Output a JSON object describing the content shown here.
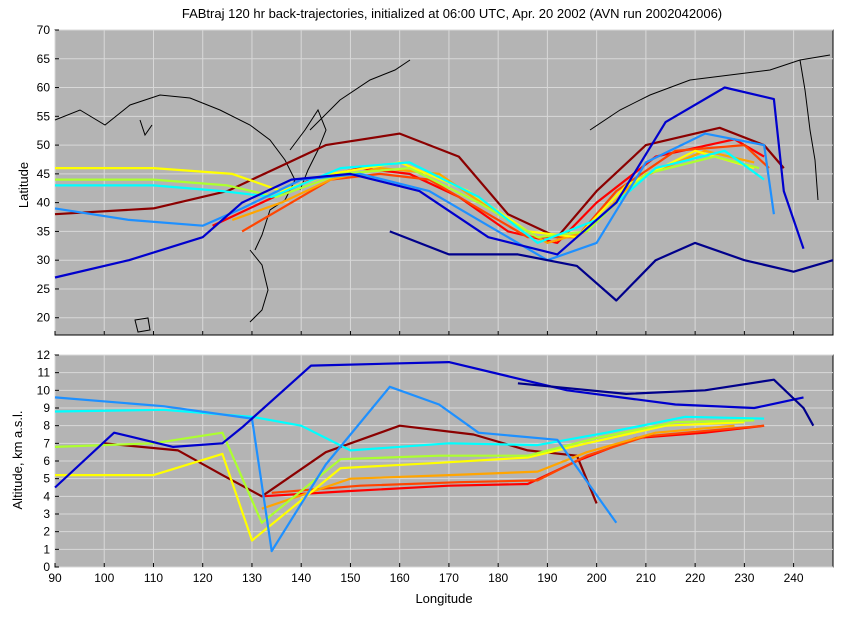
{
  "chart_data": [
    {
      "type": "line",
      "panel": "map",
      "title": "FABtraj 120 hr back-trajectories, initialized at 06:00 UTC, Apr. 20 2002 (AVN run 2002042006)",
      "xlabel": "",
      "ylabel": "Latitude",
      "xlim": [
        90,
        248
      ],
      "ylim": [
        17,
        70
      ],
      "xticks": [
        90,
        100,
        110,
        120,
        130,
        140,
        150,
        160,
        170,
        180,
        190,
        200,
        210,
        220,
        230,
        240
      ],
      "yticks": [
        20,
        25,
        30,
        35,
        40,
        45,
        50,
        55,
        60,
        65,
        70
      ],
      "grid": true,
      "background": "#b4b4b4",
      "series": [
        {
          "color": "#8b0000",
          "values": [
            [
              90,
              38
            ],
            [
              110,
              39
            ],
            [
              125,
              42
            ],
            [
              135,
              46
            ],
            [
              145,
              50
            ],
            [
              160,
              52
            ],
            [
              172,
              48
            ],
            [
              182,
              38
            ],
            [
              192,
              34
            ],
            [
              200,
              42
            ],
            [
              210,
              50
            ],
            [
              225,
              53
            ],
            [
              234,
              50
            ],
            [
              238,
              46
            ]
          ]
        },
        {
          "color": "#ff0000",
          "values": [
            [
              122,
              36
            ],
            [
              132,
              40
            ],
            [
              142,
              44
            ],
            [
              152,
              46
            ],
            [
              162,
              45
            ],
            [
              172,
              41
            ],
            [
              182,
              35
            ],
            [
              192,
              33
            ],
            [
              200,
              40
            ],
            [
              212,
              48
            ],
            [
              228,
              51
            ],
            [
              234,
              48
            ]
          ]
        },
        {
          "color": "#ff4500",
          "values": [
            [
              128,
              35
            ],
            [
              136,
              39
            ],
            [
              146,
              44
            ],
            [
              156,
              45
            ],
            [
              166,
              44
            ],
            [
              176,
              39
            ],
            [
              186,
              34
            ],
            [
              196,
              34
            ],
            [
              204,
              42
            ],
            [
              216,
              49
            ],
            [
              230,
              50
            ],
            [
              235,
              46
            ]
          ]
        },
        {
          "color": "#ffa500",
          "values": [
            [
              126,
              37
            ],
            [
              136,
              40
            ],
            [
              146,
              44
            ],
            [
              156,
              46
            ],
            [
              168,
              45
            ],
            [
              180,
              38
            ],
            [
              190,
              33
            ],
            [
              198,
              35
            ],
            [
              208,
              44
            ],
            [
              222,
              49
            ],
            [
              232,
              47
            ]
          ]
        },
        {
          "color": "#ffff00",
          "values": [
            [
              90,
              46
            ],
            [
              110,
              46
            ],
            [
              126,
              45
            ],
            [
              136,
              42
            ],
            [
              146,
              45
            ],
            [
              160,
              47
            ],
            [
              174,
              42
            ],
            [
              186,
              35
            ],
            [
              196,
              34
            ],
            [
              206,
              43
            ],
            [
              220,
              49
            ],
            [
              232,
              46
            ]
          ]
        },
        {
          "color": "#adff2f",
          "values": [
            [
              90,
              44
            ],
            [
              110,
              44
            ],
            [
              125,
              43
            ],
            [
              135,
              41
            ],
            [
              148,
              45
            ],
            [
              162,
              46
            ],
            [
              176,
              40
            ],
            [
              188,
              34
            ],
            [
              198,
              35
            ],
            [
              210,
              45
            ],
            [
              224,
              48
            ],
            [
              233,
              46
            ]
          ]
        },
        {
          "color": "#00ffff",
          "values": [
            [
              90,
              43
            ],
            [
              110,
              43
            ],
            [
              124,
              42
            ],
            [
              134,
              41
            ],
            [
              148,
              46
            ],
            [
              162,
              47
            ],
            [
              176,
              41
            ],
            [
              188,
              33
            ],
            [
              200,
              37
            ],
            [
              212,
              46
            ],
            [
              226,
              49
            ],
            [
              234,
              44
            ]
          ]
        },
        {
          "color": "#1e90ff",
          "values": [
            [
              90,
              39
            ],
            [
              105,
              37
            ],
            [
              120,
              36
            ],
            [
              128,
              39
            ],
            [
              140,
              44
            ],
            [
              152,
              45
            ],
            [
              166,
              42
            ],
            [
              178,
              36
            ],
            [
              190,
              30
            ],
            [
              200,
              33
            ],
            [
              210,
              47
            ],
            [
              222,
              52
            ],
            [
              234,
              50
            ],
            [
              236,
              38
            ]
          ]
        },
        {
          "color": "#0000cd",
          "values": [
            [
              90,
              27
            ],
            [
              105,
              30
            ],
            [
              120,
              34
            ],
            [
              128,
              40
            ],
            [
              138,
              44
            ],
            [
              150,
              45
            ],
            [
              164,
              42
            ],
            [
              178,
              34
            ],
            [
              192,
              31
            ],
            [
              204,
              40
            ],
            [
              214,
              54
            ],
            [
              226,
              60
            ],
            [
              236,
              58
            ],
            [
              238,
              42
            ],
            [
              242,
              32
            ]
          ]
        },
        {
          "color": "#00008b",
          "values": [
            [
              158,
              35
            ],
            [
              170,
              31
            ],
            [
              184,
              31
            ],
            [
              196,
              29
            ],
            [
              204,
              23
            ],
            [
              212,
              30
            ],
            [
              220,
              33
            ],
            [
              230,
              30
            ],
            [
              240,
              28
            ],
            [
              248,
              30
            ]
          ]
        }
      ]
    },
    {
      "type": "line",
      "panel": "altitude",
      "title": "",
      "xlabel": "Longitude",
      "ylabel": "Altitude, km a.s.l.",
      "xlim": [
        90,
        248
      ],
      "ylim": [
        0,
        12
      ],
      "xticks": [
        90,
        100,
        110,
        120,
        130,
        140,
        150,
        160,
        170,
        180,
        190,
        200,
        210,
        220,
        230,
        240
      ],
      "yticks": [
        0,
        1,
        2,
        3,
        4,
        5,
        6,
        7,
        8,
        9,
        10,
        11,
        12
      ],
      "grid": true,
      "background": "#b4b4b4",
      "series": [
        {
          "color": "#8b0000",
          "values": [
            [
              100,
              7
            ],
            [
              115,
              6.6
            ],
            [
              124,
              5.2
            ],
            [
              132,
              4
            ],
            [
              145,
              6.5
            ],
            [
              160,
              8
            ],
            [
              175,
              7.5
            ],
            [
              186,
              6.6
            ],
            [
              196,
              6.3
            ],
            [
              200,
              3.6
            ]
          ]
        },
        {
          "color": "#ff0000",
          "values": [
            [
              132,
              4
            ],
            [
              150,
              4.3
            ],
            [
              170,
              4.6
            ],
            [
              186,
              4.7
            ],
            [
              196,
              6.0
            ],
            [
              208,
              7.3
            ],
            [
              222,
              7.6
            ],
            [
              234,
              8
            ]
          ]
        },
        {
          "color": "#ff4500",
          "values": [
            [
              134,
              4.2
            ],
            [
              152,
              4.6
            ],
            [
              172,
              4.8
            ],
            [
              188,
              4.9
            ],
            [
              198,
              6.3
            ],
            [
              210,
              7.4
            ],
            [
              226,
              7.8
            ],
            [
              234,
              8
            ]
          ]
        },
        {
          "color": "#ffa500",
          "values": [
            [
              132,
              3.3
            ],
            [
              150,
              5.0
            ],
            [
              170,
              5.2
            ],
            [
              188,
              5.4
            ],
            [
              198,
              6.5
            ],
            [
              212,
              7.6
            ],
            [
              228,
              8
            ]
          ]
        },
        {
          "color": "#ffff00",
          "values": [
            [
              90,
              5.2
            ],
            [
              110,
              5.2
            ],
            [
              124,
              6.4
            ],
            [
              130,
              1.5
            ],
            [
              148,
              5.6
            ],
            [
              168,
              5.9
            ],
            [
              186,
              6.2
            ],
            [
              198,
              7.0
            ],
            [
              214,
              8.0
            ],
            [
              230,
              8.2
            ]
          ]
        },
        {
          "color": "#adff2f",
          "values": [
            [
              90,
              6.8
            ],
            [
              110,
              7.0
            ],
            [
              124,
              7.6
            ],
            [
              132,
              2.5
            ],
            [
              148,
              6.1
            ],
            [
              168,
              6.3
            ],
            [
              186,
              6.3
            ],
            [
              200,
              7.3
            ],
            [
              216,
              8.2
            ],
            [
              232,
              8.3
            ]
          ]
        },
        {
          "color": "#00ffff",
          "values": [
            [
              90,
              8.8
            ],
            [
              112,
              8.9
            ],
            [
              130,
              8.5
            ],
            [
              140,
              8.0
            ],
            [
              150,
              6.6
            ],
            [
              170,
              7.0
            ],
            [
              188,
              6.9
            ],
            [
              202,
              7.6
            ],
            [
              218,
              8.5
            ],
            [
              234,
              8.4
            ]
          ]
        },
        {
          "color": "#1e90ff",
          "values": [
            [
              90,
              9.6
            ],
            [
              112,
              9.1
            ],
            [
              130,
              8.4
            ],
            [
              134,
              0.9
            ],
            [
              145,
              5.8
            ],
            [
              158,
              10.2
            ],
            [
              168,
              9.2
            ],
            [
              176,
              7.6
            ],
            [
              192,
              7.2
            ],
            [
              204,
              2.5
            ]
          ]
        },
        {
          "color": "#0000cd",
          "values": [
            [
              90,
              4.5
            ],
            [
              102,
              7.6
            ],
            [
              114,
              6.8
            ],
            [
              124,
              7.0
            ],
            [
              128,
              7.9
            ],
            [
              142,
              11.4
            ],
            [
              170,
              11.6
            ],
            [
              194,
              10.0
            ],
            [
              216,
              9.2
            ],
            [
              232,
              9.0
            ],
            [
              242,
              9.6
            ]
          ]
        },
        {
          "color": "#00008b",
          "values": [
            [
              184,
              10.4
            ],
            [
              206,
              9.8
            ],
            [
              222,
              10.0
            ],
            [
              236,
              10.6
            ],
            [
              242,
              9.0
            ],
            [
              244,
              8.0
            ]
          ]
        }
      ]
    }
  ]
}
